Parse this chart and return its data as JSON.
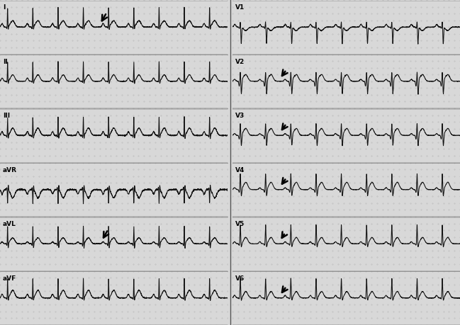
{
  "background_color": "#d8d8d8",
  "grid_dot_color": "#aaaaaa",
  "ecg_color": "#111111",
  "border_color": "#666666",
  "fig_width": 6.49,
  "fig_height": 4.59,
  "dpi": 100,
  "leads_left": [
    "I",
    "II",
    "III",
    "aVR",
    "aVL",
    "aVF"
  ],
  "leads_right": [
    "V1",
    "V2",
    "V3",
    "V4",
    "V5",
    "V6"
  ],
  "arrow_color": "#000000",
  "hr": 72,
  "fs": 250,
  "duration": 7.5
}
